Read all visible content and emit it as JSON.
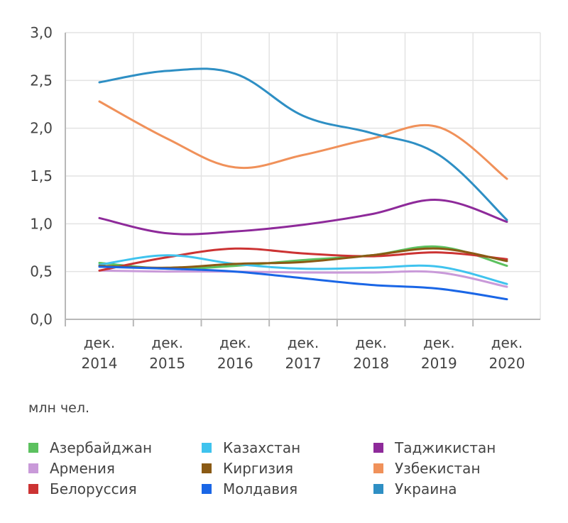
{
  "chart_data": {
    "type": "line",
    "unit_label": "млн чел.",
    "x": [
      {
        "line1": "дек.",
        "line2": "2014"
      },
      {
        "line1": "дек.",
        "line2": "2015"
      },
      {
        "line1": "дек.",
        "line2": "2016"
      },
      {
        "line1": "дек.",
        "line2": "2017"
      },
      {
        "line1": "дек.",
        "line2": "2018"
      },
      {
        "line1": "дек.",
        "line2": "2019"
      },
      {
        "line1": "дек.",
        "line2": "2020"
      }
    ],
    "ylim": [
      0,
      3
    ],
    "yticks": [
      {
        "value": 0,
        "label": "0,0"
      },
      {
        "value": 0.5,
        "label": "0,5"
      },
      {
        "value": 1,
        "label": "1,0"
      },
      {
        "value": 1.5,
        "label": "1,5"
      },
      {
        "value": 2,
        "label": "2,0"
      },
      {
        "value": 2.5,
        "label": "2,5"
      },
      {
        "value": 3,
        "label": "3,0"
      }
    ],
    "grid": true,
    "legend_position": "bottom",
    "series": [
      {
        "name": "Азербайджан",
        "color": "#5cc15f",
        "values": [
          0.59,
          0.53,
          0.56,
          0.62,
          0.67,
          0.76,
          0.56
        ]
      },
      {
        "name": "Армения",
        "color": "#c99ad9",
        "values": [
          0.51,
          0.5,
          0.5,
          0.49,
          0.49,
          0.49,
          0.34
        ]
      },
      {
        "name": "Белоруссия",
        "color": "#cc3333",
        "values": [
          0.51,
          0.65,
          0.74,
          0.69,
          0.66,
          0.7,
          0.63
        ]
      },
      {
        "name": "Казахстан",
        "color": "#3fc3ee",
        "values": [
          0.57,
          0.67,
          0.58,
          0.53,
          0.54,
          0.55,
          0.37
        ]
      },
      {
        "name": "Киргизия",
        "color": "#8a5a14",
        "values": [
          0.56,
          0.54,
          0.58,
          0.6,
          0.67,
          0.74,
          0.61
        ]
      },
      {
        "name": "Молдавия",
        "color": "#1a66e6",
        "values": [
          0.55,
          0.53,
          0.5,
          0.43,
          0.36,
          0.32,
          0.21
        ]
      },
      {
        "name": "Таджикистан",
        "color": "#8e2a9a",
        "values": [
          1.06,
          0.9,
          0.92,
          0.99,
          1.1,
          1.25,
          1.02
        ]
      },
      {
        "name": "Узбекистан",
        "color": "#f0915a",
        "values": [
          2.28,
          1.89,
          1.59,
          1.72,
          1.89,
          2.01,
          1.47
        ]
      },
      {
        "name": "Украина",
        "color": "#2e8fc4",
        "values": [
          2.48,
          2.6,
          2.57,
          2.13,
          1.95,
          1.72,
          1.04
        ]
      }
    ]
  }
}
